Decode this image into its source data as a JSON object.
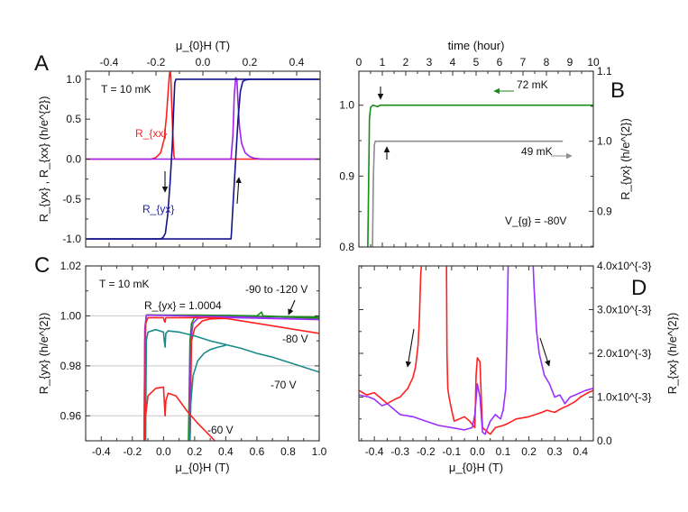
{
  "chart_data": [
    {
      "panel": "A",
      "type": "line",
      "x_axis": {
        "position": "top",
        "label": "μ_{0}H (T)",
        "lim": [
          -0.5,
          0.5
        ],
        "ticks": [
          -0.4,
          -0.2,
          0.0,
          0.2,
          0.4
        ],
        "tick_labels": [
          "-0.4",
          "-0.2",
          "0.0",
          "0.2",
          "0.4"
        ]
      },
      "y_axis": {
        "position": "left",
        "label": "R_{yx} , R_{xx} (h/e^{2})",
        "lim": [
          -1.1,
          1.1
        ],
        "ticks": [
          -1.0,
          -0.5,
          0.0,
          0.5,
          1.0
        ],
        "tick_labels": [
          "-1.0",
          "-0.5",
          "0.0",
          "0.5",
          "1.0"
        ]
      },
      "grid": false,
      "annotations": [
        "T = 10 mK",
        "R_{xx}",
        "R_{yx}"
      ],
      "annotation_colors": [
        "#111111",
        "#ff2020",
        "#2020b0"
      ],
      "series": [
        {
          "axis": "left",
          "color": "#ff2020",
          "x": [
            -0.5,
            -0.22,
            -0.2,
            -0.18,
            -0.165,
            -0.155,
            -0.148,
            -0.143,
            -0.14,
            -0.137,
            -0.133,
            -0.128,
            -0.124,
            -0.12,
            0.5
          ],
          "y": [
            0,
            0,
            0.02,
            0.08,
            0.25,
            0.55,
            0.85,
            1.05,
            1.12,
            1.05,
            0.7,
            0.3,
            0.05,
            0,
            0
          ]
        },
        {
          "axis": "left",
          "color": "#a020f0",
          "x": [
            -0.5,
            0.12,
            0.128,
            0.134,
            0.14,
            0.145,
            0.15,
            0.156,
            0.165,
            0.18,
            0.2,
            0.22,
            0.25,
            0.5
          ],
          "y": [
            0,
            0,
            0.3,
            0.8,
            1.02,
            1.0,
            0.7,
            0.4,
            0.2,
            0.08,
            0.03,
            0.01,
            0,
            0
          ]
        },
        {
          "axis": "left",
          "color": "#14148a",
          "x": [
            0.5,
            -0.115,
            -0.12,
            -0.125,
            -0.13,
            -0.14,
            -0.15,
            -0.16,
            -0.17,
            -0.18,
            -0.5
          ],
          "y": [
            1,
            1,
            0.95,
            0.6,
            0.2,
            -0.3,
            -0.7,
            -0.93,
            -0.98,
            -1,
            -1
          ]
        },
        {
          "axis": "left",
          "color": "#14148a",
          "x": [
            -0.5,
            0.12,
            0.122,
            0.13,
            0.14,
            0.15,
            0.16,
            0.17,
            0.18,
            0.2,
            0.5
          ],
          "y": [
            -1,
            -1,
            -0.92,
            -0.5,
            0.0,
            0.5,
            0.85,
            0.97,
            0.99,
            1,
            1
          ]
        }
      ]
    },
    {
      "panel": "B",
      "type": "line",
      "x_axis": {
        "position": "top",
        "label": "time (hour)",
        "lim": [
          0,
          10
        ],
        "ticks": [
          0,
          1,
          2,
          3,
          4,
          5,
          6,
          7,
          8,
          9,
          10
        ],
        "tick_labels": [
          "0",
          "1",
          "2",
          "3",
          "4",
          "5",
          "6",
          "7",
          "8",
          "9",
          "10"
        ]
      },
      "y_axis": {
        "position": "left",
        "label": "",
        "lim": [
          0.8,
          1.048
        ],
        "ticks": [
          0.8,
          0.9,
          1.0
        ],
        "tick_labels": [
          "0.8",
          "0.9",
          "1.0"
        ]
      },
      "y2_axis": {
        "position": "right",
        "label": "R_{yx} (h/e^{2})",
        "lim": [
          0.849,
          1.1
        ],
        "ticks": [
          0.9,
          1.0,
          1.1
        ],
        "tick_labels": [
          "0.9",
          "1.0",
          "1.1"
        ]
      },
      "grid": false,
      "annotations": [
        "72 mK",
        "49 mK",
        "V_{g} = -80V"
      ],
      "annotation_colors": [
        "#111111",
        "#111111",
        "#111111"
      ],
      "series": [
        {
          "name": "72 mK",
          "axis": "left",
          "color": "#1a8a1a",
          "x": [
            0.38,
            0.42,
            0.45,
            0.5,
            0.6,
            0.7,
            0.8,
            0.9,
            1.0,
            2,
            4,
            6,
            8,
            10
          ],
          "y": [
            0.8,
            0.9,
            0.98,
            0.997,
            1.0,
            0.999,
            0.998,
            1.0,
            1.0,
            1.0,
            1.0,
            1.0,
            1.0,
            1.0
          ]
        },
        {
          "name": "49 mK",
          "axis": "right",
          "color": "#8c8c8c",
          "x": [
            0.58,
            0.62,
            0.66,
            0.7,
            1,
            8.7
          ],
          "y": [
            0.849,
            0.95,
            0.995,
            1.0,
            1.0,
            1.0
          ]
        }
      ]
    },
    {
      "panel": "C",
      "type": "line",
      "x_axis": {
        "position": "bottom",
        "label": "μ_{0}H (T)",
        "lim": [
          -0.5,
          1.0
        ],
        "ticks": [
          -0.4,
          -0.2,
          0.0,
          0.2,
          0.4,
          0.6,
          0.8,
          1.0
        ],
        "tick_labels": [
          "-0.4",
          "-0.2",
          "0.0",
          "0.2",
          "0.4",
          "0.6",
          "0.8",
          "1.0"
        ]
      },
      "y_axis": {
        "position": "left",
        "label": "R_{yx} (h/e^{2})",
        "lim": [
          0.95,
          1.02
        ],
        "ticks": [
          0.96,
          0.98,
          1.0,
          1.02
        ],
        "tick_labels": [
          "0.96",
          "0.98",
          "1.00",
          "1.02"
        ]
      },
      "grid": true,
      "gridlines": [
        0.96,
        0.98,
        1.0
      ],
      "annotations": [
        "T = 10 mK",
        "R_{yx} = 1.0004",
        "-90 to -120 V",
        "-80 V",
        "-70 V",
        "-60 V"
      ],
      "annotation_colors": [
        "#111111",
        "#111111",
        "#111111",
        "#111111",
        "#111111",
        "#111111"
      ],
      "series": [
        {
          "name": "-90 to -120 V",
          "axis": "left",
          "color": "#1a8a1a",
          "x": [
            -0.125,
            -0.12,
            -0.11,
            -0.1,
            0,
            0.2,
            0.4,
            0.6,
            0.63,
            0.64,
            0.8,
            1.0,
            null,
            0.16,
            0.17,
            0.18,
            0.2,
            0.25,
            1.0
          ],
          "y": [
            0.95,
            0.99,
            1.0003,
            1.0004,
            1.0003,
            1.0003,
            1.0002,
            1.0,
            1.0015,
            1.0,
            0.9995,
            0.999,
            null,
            0.95,
            0.99,
            0.997,
            0.9995,
            1.0,
            0.9995
          ]
        },
        {
          "name": "-90 to -120 V",
          "axis": "left",
          "color": "#9b30ff",
          "x": [
            -0.125,
            -0.12,
            -0.11,
            0,
            0.5,
            1.0,
            null,
            0.165,
            0.175,
            0.19,
            0.22,
            0.3,
            1.0
          ],
          "y": [
            0.95,
            0.995,
            1.0003,
            1.0002,
            0.9995,
            0.9985,
            null,
            0.95,
            0.99,
            0.997,
            0.999,
            0.9995,
            0.9985
          ]
        },
        {
          "name": "-80 V",
          "axis": "left",
          "color": "#ff2020",
          "x": [
            -0.12,
            -0.115,
            -0.1,
            0,
            0.005,
            0.01,
            0.015,
            0.1,
            0.3,
            0.4,
            0.6,
            0.8,
            1.0,
            null,
            0.17,
            0.18,
            0.2,
            0.25,
            0.3,
            0.4
          ],
          "y": [
            0.95,
            0.997,
            0.9993,
            0.9993,
            0.998,
            0.9975,
            0.9993,
            0.9993,
            0.9993,
            0.999,
            0.997,
            0.995,
            0.993,
            null,
            0.95,
            0.99,
            0.995,
            0.998,
            0.9988,
            0.999
          ]
        },
        {
          "name": "-70 V",
          "axis": "left",
          "color": "#1a8a8a",
          "x": [
            -0.115,
            -0.11,
            -0.1,
            -0.05,
            0,
            0.005,
            0.01,
            0.015,
            0.03,
            0.1,
            0.2,
            0.3,
            0.4,
            0.5,
            0.6,
            0.7,
            0.8,
            0.9,
            1.0,
            null,
            0.17,
            0.175,
            0.19,
            0.22,
            0.26,
            0.3,
            0.35,
            0.4
          ],
          "y": [
            0.95,
            0.99,
            0.9935,
            0.9945,
            0.9935,
            0.99,
            0.9875,
            0.993,
            0.994,
            0.9935,
            0.992,
            0.99,
            0.9885,
            0.987,
            0.985,
            0.9835,
            0.9815,
            0.9795,
            0.9775,
            null,
            0.95,
            0.965,
            0.976,
            0.982,
            0.985,
            0.9865,
            0.9875,
            0.9882
          ]
        },
        {
          "name": "-60 V",
          "axis": "left",
          "color": "#ff2020",
          "x": [
            -0.12,
            -0.115,
            -0.1,
            -0.05,
            0,
            0.005,
            0.01,
            0.015,
            0.03,
            0.08,
            0.15,
            0.22,
            0.33
          ],
          "y": [
            0.95,
            0.96,
            0.968,
            0.971,
            0.9715,
            0.966,
            0.96,
            0.966,
            0.969,
            0.968,
            0.962,
            0.957,
            0.95
          ]
        }
      ]
    },
    {
      "panel": "D",
      "type": "line",
      "x_axis": {
        "position": "bottom",
        "label": "μ_{0}H (T)",
        "lim": [
          -0.46,
          0.45
        ],
        "ticks": [
          -0.4,
          -0.3,
          -0.2,
          -0.1,
          0.0,
          0.1,
          0.2,
          0.3,
          0.4
        ],
        "tick_labels": [
          "-0.4",
          "-0.3",
          "-0.2",
          "-0.1",
          "0.0",
          "0.1",
          "0.2",
          "0.3",
          "0.4"
        ]
      },
      "y2_axis": {
        "position": "right",
        "label": "R_{xx} (h/e^{2})",
        "lim": [
          0,
          0.004
        ],
        "ticks": [
          0,
          0.001,
          0.002,
          0.003,
          0.004
        ],
        "tick_labels": [
          "0.0",
          "1.0x10^{-3}",
          "2.0x10^{-3}",
          "3.0x10^{-3}",
          "4.0x10^{-3}"
        ]
      },
      "grid": false,
      "annotations": [],
      "series": [
        {
          "axis": "right",
          "color": "#ff2020",
          "x": [
            -0.46,
            -0.43,
            -0.4,
            -0.37,
            -0.35,
            -0.32,
            -0.3,
            -0.27,
            -0.25,
            -0.24,
            -0.23,
            -0.225,
            -0.22,
            -0.215,
            null,
            -0.12,
            -0.118,
            -0.115,
            -0.11,
            -0.1,
            -0.09,
            -0.07,
            -0.05,
            -0.03,
            -0.01,
            -0.005,
            0,
            0.01,
            0.015,
            0.02,
            0.03,
            0.05,
            0.07,
            0.1,
            0.12,
            0.15,
            0.2,
            0.25,
            0.27,
            0.3,
            0.33,
            0.35,
            0.38,
            0.4,
            0.43,
            0.45
          ],
          "y": [
            0.00115,
            0.00105,
            0.0011,
            0.00095,
            0.00085,
            0.00095,
            0.001,
            0.0012,
            0.00145,
            0.0017,
            0.0022,
            0.0028,
            0.0038,
            0.0042,
            null,
            0.0042,
            0.002,
            0.0012,
            0.001,
            0.0007,
            0.00045,
            0.0005,
            0.00055,
            0.00045,
            0.0003,
            0.0015,
            0.0019,
            0.0018,
            0.001,
            0.0003,
            0.00025,
            0.00015,
            0.0003,
            0.00035,
            0.0004,
            0.0005,
            0.00055,
            0.00065,
            0.0007,
            0.00065,
            0.00075,
            0.0008,
            0.0009,
            0.001,
            0.0011,
            0.00115
          ]
        },
        {
          "axis": "right",
          "color": "#9b30ff",
          "x": [
            -0.46,
            -0.42,
            -0.4,
            -0.37,
            -0.35,
            -0.3,
            -0.25,
            -0.2,
            -0.15,
            -0.1,
            -0.05,
            -0.02,
            -0.01,
            0,
            0.01,
            0.02,
            0.03,
            0.05,
            0.07,
            0.09,
            0.1,
            0.11,
            0.115,
            0.12,
            null,
            0.215,
            0.22,
            0.23,
            0.24,
            0.26,
            0.28,
            0.3,
            0.32,
            0.34,
            0.36,
            0.38,
            0.4,
            0.42,
            0.45
          ],
          "y": [
            0.00105,
            0.001,
            0.00095,
            0.0008,
            0.00085,
            0.0006,
            0.00055,
            0.00045,
            0.00035,
            0.0003,
            0.00025,
            0.0003,
            0.0006,
            0.0013,
            0.001,
            0.0002,
            0.00015,
            0.00045,
            0.0006,
            0.0005,
            0.0007,
            0.0012,
            0.0025,
            0.0042,
            null,
            0.0042,
            0.0035,
            0.0025,
            0.002,
            0.0015,
            0.0013,
            0.001,
            0.00105,
            0.00085,
            0.001,
            0.00105,
            0.0011,
            0.00115,
            0.0012
          ]
        }
      ]
    }
  ]
}
